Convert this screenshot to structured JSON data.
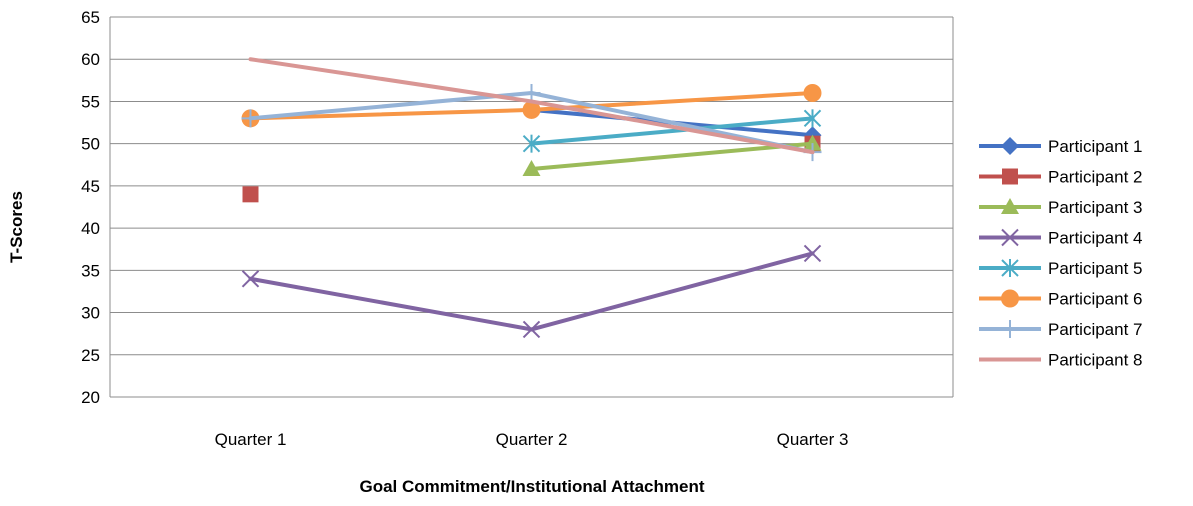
{
  "chart_data": {
    "type": "line",
    "title": "",
    "xlabel": "Goal Commitment/Institutional Attachment",
    "ylabel": "T-Scores",
    "categories": [
      "Quarter 1",
      "Quarter 2",
      "Quarter 3"
    ],
    "ylim": [
      20,
      65
    ],
    "yticks": [
      20,
      25,
      30,
      35,
      40,
      45,
      50,
      55,
      60,
      65
    ],
    "grid": true,
    "legend": "right",
    "series": [
      {
        "name": "Participant 1",
        "values": [
          null,
          54,
          51
        ],
        "color": "#4472C4",
        "marker": "diamond"
      },
      {
        "name": "Participant 2",
        "values": [
          44,
          null,
          50
        ],
        "color": "#C0504D",
        "marker": "square"
      },
      {
        "name": "Participant 3",
        "values": [
          null,
          47,
          50
        ],
        "color": "#9BBB59",
        "marker": "triangle"
      },
      {
        "name": "Participant 4",
        "values": [
          34,
          28,
          37
        ],
        "color": "#8064A2",
        "marker": "x"
      },
      {
        "name": "Participant 5",
        "values": [
          null,
          50,
          53
        ],
        "color": "#4BACC6",
        "marker": "star"
      },
      {
        "name": "Participant 6",
        "values": [
          53,
          54,
          56
        ],
        "color": "#F79646",
        "marker": "circle"
      },
      {
        "name": "Participant 7",
        "values": [
          53,
          56,
          49
        ],
        "color": "#95B3D7",
        "marker": "plus"
      },
      {
        "name": "Participant 8",
        "values": [
          60,
          55,
          49
        ],
        "color": "#D99694",
        "marker": "none"
      }
    ]
  }
}
